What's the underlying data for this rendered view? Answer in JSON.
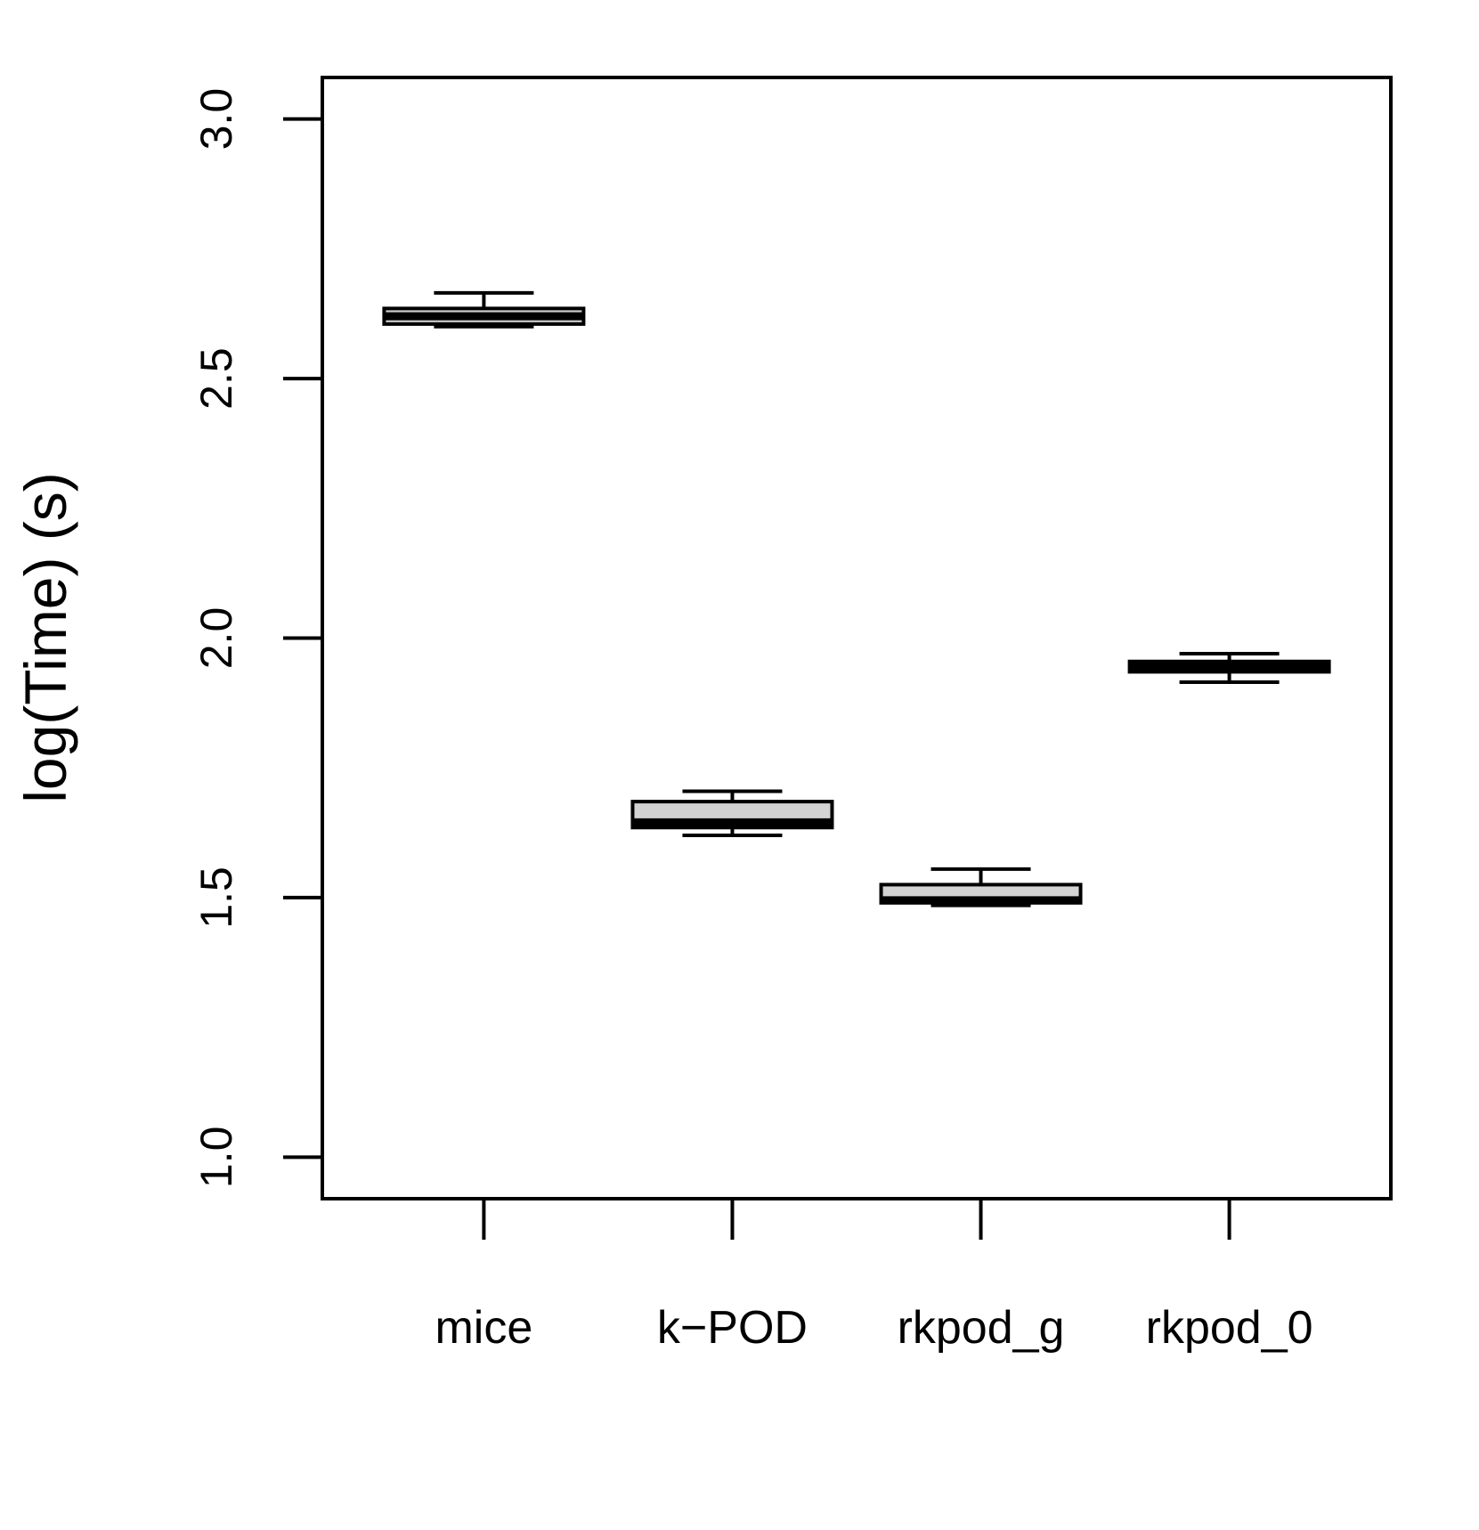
{
  "chart_data": {
    "type": "box",
    "title": "",
    "xlabel": "",
    "ylabel": "log(Time) (s)",
    "ylim": [
      0.92,
      3.08
    ],
    "yticks": [
      1.0,
      1.5,
      2.0,
      2.5,
      3.0
    ],
    "ytick_labels": [
      "1.0",
      "1.5",
      "2.0",
      "2.5",
      "3.0"
    ],
    "grid": false,
    "legend": "none",
    "categories": [
      "mice",
      "k−POD",
      "rkpod_g",
      "rkpod_0"
    ],
    "boxes": [
      {
        "category": "mice",
        "whisker_low": 2.6,
        "q1": 2.605,
        "median": 2.62,
        "q3": 2.635,
        "whisker_high": 2.665,
        "fill": "#cccccc"
      },
      {
        "category": "k−POD",
        "whisker_low": 1.62,
        "q1": 1.635,
        "median": 1.645,
        "q3": 1.685,
        "whisker_high": 1.705,
        "fill": "#d3d3d3"
      },
      {
        "category": "rkpod_g",
        "whisker_low": 1.485,
        "q1": 1.49,
        "median": 1.495,
        "q3": 1.525,
        "whisker_high": 1.555,
        "fill": "#d3d3d3"
      },
      {
        "category": "rkpod_0",
        "whisker_low": 1.915,
        "q1": 1.935,
        "median": 1.945,
        "q3": 1.955,
        "whisker_high": 1.97,
        "fill": "#cccccc"
      }
    ]
  }
}
